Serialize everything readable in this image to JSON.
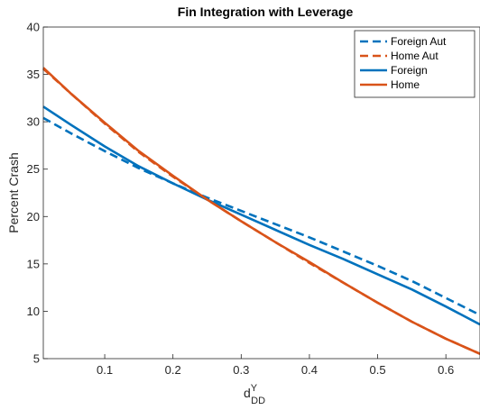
{
  "chart_data": {
    "type": "line",
    "title": "Fin Integration with Leverage",
    "ylabel": "Percent Crash",
    "xlabel": "d",
    "xlabel_sup": "Y",
    "xlabel_sub": "DD",
    "xlim": [
      0.01,
      0.65
    ],
    "ylim": [
      5,
      40
    ],
    "xticks": [
      0.1,
      0.2,
      0.3,
      0.4,
      0.5,
      0.6
    ],
    "xtick_labels": [
      "0.1",
      "0.2",
      "0.3",
      "0.4",
      "0.5",
      "0.6"
    ],
    "yticks": [
      5,
      10,
      15,
      20,
      25,
      30,
      35,
      40
    ],
    "ytick_labels": [
      "5",
      "10",
      "15",
      "20",
      "25",
      "30",
      "35",
      "40"
    ],
    "grid": false,
    "legend_position": "top-right",
    "series": [
      {
        "name": "Foreign Aut",
        "color": "#0072BD",
        "style": "dashed",
        "x": [
          0.01,
          0.05,
          0.1,
          0.15,
          0.2,
          0.25,
          0.3,
          0.35,
          0.4,
          0.45,
          0.5,
          0.55,
          0.6,
          0.65
        ],
        "y": [
          30.4,
          28.8,
          26.9,
          25.1,
          23.5,
          22.0,
          20.6,
          19.2,
          17.8,
          16.3,
          14.8,
          13.2,
          11.4,
          9.6
        ]
      },
      {
        "name": "Home Aut",
        "color": "#D95319",
        "style": "dashed",
        "x": [
          0.01,
          0.05,
          0.1,
          0.15,
          0.2,
          0.25,
          0.3,
          0.35,
          0.4,
          0.45,
          0.5,
          0.55,
          0.6,
          0.65
        ],
        "y": [
          35.6,
          33.0,
          29.8,
          26.8,
          24.2,
          21.8,
          19.5,
          17.3,
          15.1,
          13.0,
          10.9,
          8.9,
          7.1,
          5.5
        ]
      },
      {
        "name": "Foreign",
        "color": "#0072BD",
        "style": "solid",
        "x": [
          0.01,
          0.05,
          0.1,
          0.15,
          0.2,
          0.25,
          0.3,
          0.35,
          0.4,
          0.45,
          0.5,
          0.55,
          0.6,
          0.65
        ],
        "y": [
          31.6,
          29.7,
          27.4,
          25.3,
          23.5,
          21.8,
          20.2,
          18.6,
          17.0,
          15.5,
          13.9,
          12.3,
          10.5,
          8.6
        ]
      },
      {
        "name": "Home",
        "color": "#D95319",
        "style": "solid",
        "x": [
          0.01,
          0.05,
          0.1,
          0.15,
          0.2,
          0.25,
          0.3,
          0.35,
          0.4,
          0.45,
          0.5,
          0.55,
          0.6,
          0.65
        ],
        "y": [
          35.7,
          33.0,
          29.9,
          26.9,
          24.3,
          21.8,
          19.5,
          17.3,
          15.2,
          13.0,
          10.9,
          8.9,
          7.1,
          5.5
        ]
      }
    ]
  }
}
